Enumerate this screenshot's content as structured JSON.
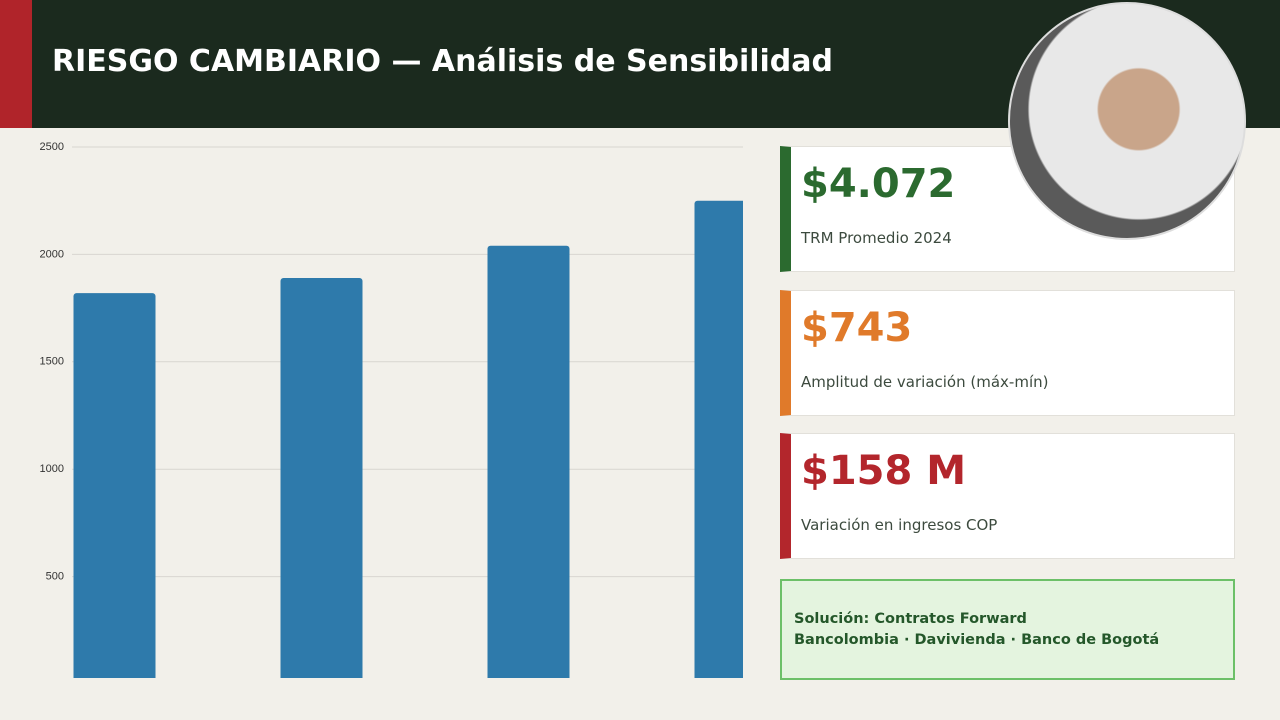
{
  "header": {
    "title": "RIESGO CAMBIARIO — Análisis de Sensibilidad"
  },
  "chart_data": {
    "type": "bar",
    "categories": [
      null,
      null,
      null,
      null
    ],
    "values": [
      1820,
      1890,
      2040,
      2250
    ],
    "color": "#2e7aab",
    "ylim": [
      0,
      2500
    ],
    "yticks": [
      500,
      1000,
      1500,
      2000,
      2500
    ],
    "grid": true
  },
  "cards": [
    {
      "value": "$4.072",
      "label": "TRM Promedio 2024",
      "color": "#2b6a2f"
    },
    {
      "value": "$743",
      "label": "Amplitud de variación (máx-mín)",
      "color": "#e07a2a"
    },
    {
      "value": "$158 M",
      "label": "Variación en ingresos COP",
      "color": "#b3262c"
    }
  ],
  "solution": {
    "line1": "Solución: Contratos Forward",
    "line2": "Bancolombia · Davivienda · Banco de Bogotá"
  }
}
